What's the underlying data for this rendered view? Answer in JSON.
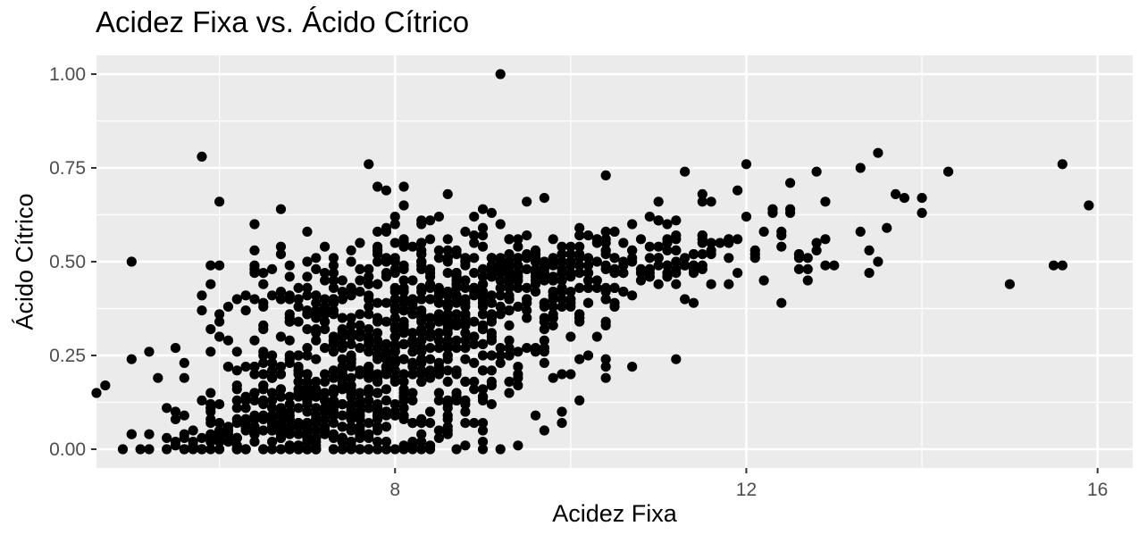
{
  "chart_data": {
    "type": "scatter",
    "title": "Acidez Fixa vs. Ácido Cítrico",
    "xlabel": "Acidez Fixa",
    "ylabel": "Ácido Cítrico",
    "xlim": [
      4.6,
      16.4
    ],
    "ylim": [
      -0.05,
      1.05
    ],
    "x_ticks": [
      8,
      12,
      16
    ],
    "x_tick_labels": [
      "8",
      "12",
      "16"
    ],
    "y_ticks": [
      0,
      0.25,
      0.5,
      0.75,
      1.0
    ],
    "y_tick_labels": [
      "0.00",
      "0.25",
      "0.50",
      "0.75",
      "1.00"
    ],
    "grid": true,
    "panel_background": "#ebebeb",
    "grid_color": "#ffffff",
    "point_color": "#000000",
    "outlier_points": [
      {
        "x": 4.6,
        "y": 0.15
      },
      {
        "x": 4.7,
        "y": 0.17
      },
      {
        "x": 5.0,
        "y": 0.5
      },
      {
        "x": 5.0,
        "y": 0.24
      },
      {
        "x": 5.2,
        "y": 0.26
      },
      {
        "x": 5.3,
        "y": 0.19
      },
      {
        "x": 5.5,
        "y": 0.27
      },
      {
        "x": 5.8,
        "y": 0.37
      },
      {
        "x": 5.8,
        "y": 0.78
      },
      {
        "x": 6.0,
        "y": 0.66
      },
      {
        "x": 6.1,
        "y": 0.22
      },
      {
        "x": 9.2,
        "y": 1.0
      },
      {
        "x": 7.7,
        "y": 0.76
      },
      {
        "x": 7.8,
        "y": 0.7
      },
      {
        "x": 7.9,
        "y": 0.69
      },
      {
        "x": 8.1,
        "y": 0.7
      },
      {
        "x": 6.7,
        "y": 0.64
      },
      {
        "x": 6.4,
        "y": 0.53
      },
      {
        "x": 10.4,
        "y": 0.73
      },
      {
        "x": 11.3,
        "y": 0.74
      },
      {
        "x": 12.0,
        "y": 0.76
      },
      {
        "x": 12.8,
        "y": 0.74
      },
      {
        "x": 13.3,
        "y": 0.75
      },
      {
        "x": 13.5,
        "y": 0.79
      },
      {
        "x": 13.7,
        "y": 0.68
      },
      {
        "x": 13.8,
        "y": 0.67
      },
      {
        "x": 14.0,
        "y": 0.63
      },
      {
        "x": 14.3,
        "y": 0.74
      },
      {
        "x": 15.0,
        "y": 0.44
      },
      {
        "x": 15.5,
        "y": 0.49
      },
      {
        "x": 15.6,
        "y": 0.49
      },
      {
        "x": 15.6,
        "y": 0.76
      },
      {
        "x": 15.9,
        "y": 0.65
      },
      {
        "x": 11.2,
        "y": 0.24
      },
      {
        "x": 10.7,
        "y": 0.22
      },
      {
        "x": 9.9,
        "y": 0.07
      },
      {
        "x": 10.4,
        "y": 0.24
      },
      {
        "x": 12.7,
        "y": 0.45
      },
      {
        "x": 13.0,
        "y": 0.49
      },
      {
        "x": 12.4,
        "y": 0.58
      },
      {
        "x": 11.6,
        "y": 0.66
      },
      {
        "x": 11.9,
        "y": 0.69
      },
      {
        "x": 9.5,
        "y": 0.66
      },
      {
        "x": 8.6,
        "y": 0.68
      },
      {
        "x": 5.1,
        "y": 0.0
      },
      {
        "x": 5.2,
        "y": 0.0
      },
      {
        "x": 5.4,
        "y": 0.0
      },
      {
        "x": 5.6,
        "y": 0.0
      },
      {
        "x": 4.9,
        "y": 0.0
      },
      {
        "x": 5.0,
        "y": 0.04
      },
      {
        "x": 5.2,
        "y": 0.04
      },
      {
        "x": 5.4,
        "y": 0.11
      },
      {
        "x": 5.5,
        "y": 0.08
      },
      {
        "x": 9.0,
        "y": 0.0
      },
      {
        "x": 9.2,
        "y": 0.0
      },
      {
        "x": 9.0,
        "y": 0.05
      }
    ],
    "clusters": [
      {
        "x": 7.0,
        "y": 0.05,
        "sx": 0.6,
        "sy": 0.05,
        "n": 150
      },
      {
        "x": 7.6,
        "y": 0.1,
        "sx": 0.5,
        "sy": 0.07,
        "n": 90
      },
      {
        "x": 7.4,
        "y": 0.25,
        "sx": 0.6,
        "sy": 0.1,
        "n": 170
      },
      {
        "x": 8.2,
        "y": 0.32,
        "sx": 0.6,
        "sy": 0.1,
        "n": 160
      },
      {
        "x": 6.6,
        "y": 0.15,
        "sx": 0.45,
        "sy": 0.1,
        "n": 70
      },
      {
        "x": 8.8,
        "y": 0.4,
        "sx": 0.55,
        "sy": 0.08,
        "n": 110
      },
      {
        "x": 9.5,
        "y": 0.45,
        "sx": 0.5,
        "sy": 0.06,
        "n": 90
      },
      {
        "x": 10.3,
        "y": 0.5,
        "sx": 0.55,
        "sy": 0.06,
        "n": 90
      },
      {
        "x": 11.3,
        "y": 0.52,
        "sx": 0.5,
        "sy": 0.06,
        "n": 60
      },
      {
        "x": 12.6,
        "y": 0.55,
        "sx": 0.55,
        "sy": 0.07,
        "n": 35
      },
      {
        "x": 8.6,
        "y": 0.15,
        "sx": 0.5,
        "sy": 0.1,
        "n": 60
      },
      {
        "x": 7.5,
        "y": 0.45,
        "sx": 0.5,
        "sy": 0.05,
        "n": 50
      },
      {
        "x": 6.0,
        "y": 0.03,
        "sx": 0.35,
        "sy": 0.03,
        "n": 45
      },
      {
        "x": 9.6,
        "y": 0.25,
        "sx": 0.5,
        "sy": 0.1,
        "n": 45
      },
      {
        "x": 8.3,
        "y": 0.55,
        "sx": 0.5,
        "sy": 0.05,
        "n": 35
      },
      {
        "x": 6.5,
        "y": 0.38,
        "sx": 0.4,
        "sy": 0.08,
        "n": 20
      }
    ]
  }
}
